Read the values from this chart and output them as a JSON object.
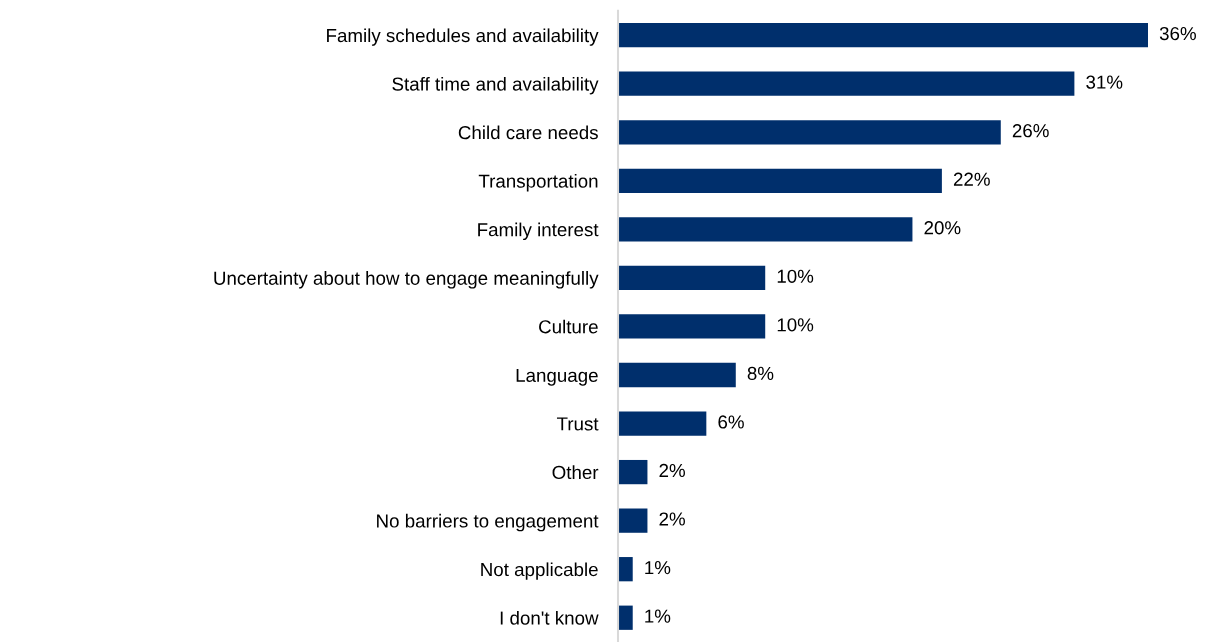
{
  "chart_data": {
    "type": "bar",
    "orientation": "horizontal",
    "categories": [
      "Family schedules and availability",
      "Staff time and availability",
      "Child care needs",
      "Transportation",
      "Family interest",
      "Uncertainty about how to engage meaningfully",
      "Culture",
      "Language",
      "Trust",
      "Other",
      "No barriers to engagement",
      "Not applicable",
      "I don't know"
    ],
    "values": [
      36,
      31,
      26,
      22,
      20,
      10,
      10,
      8,
      6,
      2,
      2,
      1,
      1
    ],
    "value_labels": [
      "36%",
      "31%",
      "26%",
      "22%",
      "20%",
      "10%",
      "10%",
      "8%",
      "6%",
      "2%",
      "2%",
      "1%",
      "1%"
    ],
    "color": "#002f6c",
    "xlim": [
      0,
      36
    ],
    "tick_labels": "y",
    "grid": false,
    "legend": false
  }
}
